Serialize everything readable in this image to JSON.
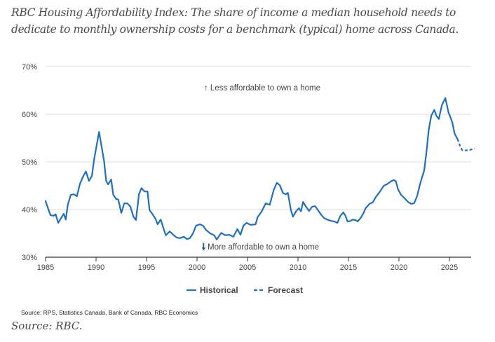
{
  "title": "RBC Housing Affordability Index: The share of income a median household needs to dedicate to monthly ownership costs for a benchmark (typical) home across Canada.",
  "source_note": "Source: RPS, Statistics Canada, Bank of Canada, RBC Economics",
  "source": "Source: RBC.",
  "colors": {
    "line": "#1f6fc5",
    "grid": "#dddddd",
    "axis": "#333333",
    "text": "#444444"
  },
  "chart_data": {
    "type": "line",
    "title": "RBC Housing Affordability Index",
    "xlabel": "",
    "ylabel": "",
    "xlim": [
      1985,
      2027.2
    ],
    "ylim": [
      30,
      70
    ],
    "x_ticks": [
      1985,
      1990,
      1995,
      2000,
      2005,
      2010,
      2015,
      2020,
      2025
    ],
    "y_ticks": [
      30,
      40,
      50,
      60,
      70
    ],
    "y_tick_labels": [
      "30%",
      "40%",
      "50%",
      "60%",
      "70%"
    ],
    "grid": true,
    "legend_position": "bottom-center",
    "annotations": [
      {
        "text": "↑ Less affordable to own a home",
        "x": 2010.5,
        "y": 67
      },
      {
        "text": "More affordable to own a home",
        "x": 2010.5,
        "y": 32
      }
    ],
    "series": [
      {
        "name": "Historical",
        "style": "solid",
        "points": [
          [
            1985.0,
            41.8
          ],
          [
            1985.3,
            39.9
          ],
          [
            1985.5,
            38.8
          ],
          [
            1985.8,
            38.7
          ],
          [
            1986.0,
            39.0
          ],
          [
            1986.25,
            37.2
          ],
          [
            1986.6,
            38.4
          ],
          [
            1986.8,
            39.1
          ],
          [
            1987.0,
            37.9
          ],
          [
            1987.2,
            41.0
          ],
          [
            1987.5,
            43.1
          ],
          [
            1987.8,
            43.2
          ],
          [
            1988.1,
            42.8
          ],
          [
            1988.4,
            45.4
          ],
          [
            1988.75,
            47.1
          ],
          [
            1989.0,
            48.0
          ],
          [
            1989.3,
            46.0
          ],
          [
            1989.6,
            47.1
          ],
          [
            1989.8,
            50.4
          ],
          [
            1990.3,
            56.3
          ],
          [
            1990.6,
            52.6
          ],
          [
            1990.8,
            50.1
          ],
          [
            1991.0,
            46.0
          ],
          [
            1991.2,
            45.3
          ],
          [
            1991.5,
            46.3
          ],
          [
            1991.7,
            43.1
          ],
          [
            1992.0,
            42.2
          ],
          [
            1992.2,
            42.1
          ],
          [
            1992.5,
            39.3
          ],
          [
            1992.8,
            41.3
          ],
          [
            1993.1,
            41.3
          ],
          [
            1993.4,
            40.6
          ],
          [
            1993.7,
            38.5
          ],
          [
            1993.95,
            37.8
          ],
          [
            1994.25,
            43.2
          ],
          [
            1994.5,
            44.5
          ],
          [
            1994.8,
            43.8
          ],
          [
            1995.1,
            43.8
          ],
          [
            1995.3,
            39.9
          ],
          [
            1995.6,
            39.0
          ],
          [
            1995.9,
            38.0
          ],
          [
            1996.1,
            36.9
          ],
          [
            1996.4,
            37.9
          ],
          [
            1996.6,
            36.6
          ],
          [
            1996.9,
            34.6
          ],
          [
            1997.3,
            35.4
          ],
          [
            1997.7,
            34.6
          ],
          [
            1998.0,
            34.1
          ],
          [
            1998.3,
            34.0
          ],
          [
            1998.7,
            34.3
          ],
          [
            1999.0,
            33.8
          ],
          [
            1999.3,
            34.0
          ],
          [
            1999.6,
            35.0
          ],
          [
            1999.9,
            36.6
          ],
          [
            2000.3,
            36.9
          ],
          [
            2000.6,
            36.6
          ],
          [
            2000.9,
            35.7
          ],
          [
            2001.3,
            35.0
          ],
          [
            2001.7,
            34.6
          ],
          [
            2001.95,
            33.7
          ],
          [
            2002.4,
            35.1
          ],
          [
            2002.8,
            34.6
          ],
          [
            2003.2,
            34.7
          ],
          [
            2003.6,
            34.3
          ],
          [
            2004.0,
            35.9
          ],
          [
            2004.3,
            34.7
          ],
          [
            2004.6,
            36.6
          ],
          [
            2004.9,
            37.2
          ],
          [
            2005.3,
            36.8
          ],
          [
            2005.8,
            36.9
          ],
          [
            2006.0,
            38.4
          ],
          [
            2006.4,
            39.6
          ],
          [
            2006.8,
            41.3
          ],
          [
            2007.2,
            41.0
          ],
          [
            2007.6,
            44.1
          ],
          [
            2007.9,
            45.6
          ],
          [
            2008.2,
            45.1
          ],
          [
            2008.5,
            43.5
          ],
          [
            2008.8,
            43.2
          ],
          [
            2009.0,
            43.5
          ],
          [
            2009.3,
            39.9
          ],
          [
            2009.5,
            38.5
          ],
          [
            2009.8,
            39.6
          ],
          [
            2010.1,
            40.3
          ],
          [
            2010.3,
            39.6
          ],
          [
            2010.5,
            41.6
          ],
          [
            2010.8,
            40.6
          ],
          [
            2011.1,
            39.7
          ],
          [
            2011.4,
            40.6
          ],
          [
            2011.7,
            40.7
          ],
          [
            2011.9,
            40.1
          ],
          [
            2012.3,
            38.9
          ],
          [
            2012.6,
            38.2
          ],
          [
            2012.9,
            37.9
          ],
          [
            2013.3,
            37.6
          ],
          [
            2013.6,
            37.5
          ],
          [
            2013.9,
            37.2
          ],
          [
            2014.2,
            38.7
          ],
          [
            2014.5,
            39.4
          ],
          [
            2014.7,
            38.7
          ],
          [
            2014.9,
            37.5
          ],
          [
            2015.2,
            37.6
          ],
          [
            2015.4,
            37.9
          ],
          [
            2015.7,
            37.8
          ],
          [
            2015.9,
            37.5
          ],
          [
            2016.2,
            38.2
          ],
          [
            2016.5,
            39.3
          ],
          [
            2016.7,
            40.3
          ],
          [
            2017.1,
            41.2
          ],
          [
            2017.4,
            41.5
          ],
          [
            2017.7,
            42.6
          ],
          [
            2018.1,
            43.7
          ],
          [
            2018.5,
            45.0
          ],
          [
            2018.8,
            45.3
          ],
          [
            2019.2,
            45.9
          ],
          [
            2019.5,
            46.2
          ],
          [
            2019.7,
            45.9
          ],
          [
            2019.9,
            44.3
          ],
          [
            2020.2,
            43.1
          ],
          [
            2020.5,
            42.5
          ],
          [
            2020.9,
            41.6
          ],
          [
            2021.2,
            41.2
          ],
          [
            2021.5,
            41.3
          ],
          [
            2021.8,
            42.8
          ],
          [
            2022.1,
            45.4
          ],
          [
            2022.5,
            48.2
          ],
          [
            2022.7,
            51.6
          ],
          [
            2022.95,
            56.7
          ],
          [
            2023.2,
            59.7
          ],
          [
            2023.5,
            60.9
          ],
          [
            2023.7,
            59.7
          ],
          [
            2023.95,
            59.0
          ],
          [
            2024.25,
            61.9
          ],
          [
            2024.6,
            63.4
          ],
          [
            2024.9,
            60.4
          ],
          [
            2025.1,
            59.4
          ],
          [
            2025.3,
            58.2
          ],
          [
            2025.5,
            56.0
          ],
          [
            2025.8,
            54.8
          ]
        ]
      },
      {
        "name": "Forecast",
        "style": "dashed",
        "points": [
          [
            2025.8,
            54.8
          ],
          [
            2026.1,
            53.1
          ],
          [
            2026.3,
            52.4
          ],
          [
            2026.6,
            52.4
          ],
          [
            2027.0,
            52.5
          ],
          [
            2027.5,
            52.8
          ]
        ]
      }
    ]
  },
  "legend": {
    "items": [
      {
        "label": "Historical",
        "style": "solid"
      },
      {
        "label": "Forecast",
        "style": "dashed"
      }
    ]
  }
}
